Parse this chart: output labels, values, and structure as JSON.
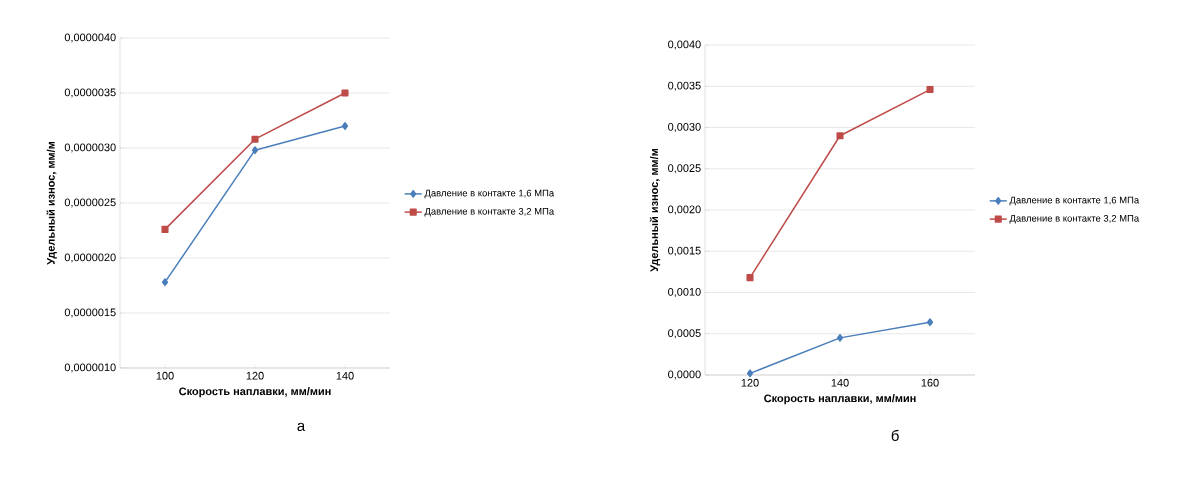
{
  "chart_data": [
    {
      "type": "line",
      "categories": [
        "100",
        "120",
        "140"
      ],
      "xlabel": "Скорость наплавки, мм/мин",
      "ylabel": "Удельный износ, мм/м",
      "series": [
        {
          "name": "Давление в контакте 1,6 МПа",
          "color": "#4a7ebb",
          "marker": "diamond",
          "values": [
            1.78e-06,
            2.98e-06,
            3.2e-06
          ]
        },
        {
          "name": "Давление в контакте 3,2 МПа",
          "color": "#be4b48",
          "marker": "square",
          "values": [
            2.26e-06,
            3.08e-06,
            3.5e-06
          ]
        }
      ],
      "ylim": [
        1e-06,
        4e-06
      ],
      "yticks": [
        {
          "value": 1e-06,
          "label": "0,0000010"
        },
        {
          "value": 1.5e-06,
          "label": "0,0000015"
        },
        {
          "value": 2e-06,
          "label": "0,0000020"
        },
        {
          "value": 2.5e-06,
          "label": "0,0000025"
        },
        {
          "value": 3e-06,
          "label": "0,0000030"
        },
        {
          "value": 3.5e-06,
          "label": "0,0000035"
        },
        {
          "value": 4e-06,
          "label": "0,0000040"
        }
      ],
      "grid": "y",
      "legend": "right",
      "annotations": [
        "а"
      ]
    },
    {
      "type": "line",
      "categories": [
        "120",
        "140",
        "160"
      ],
      "xlabel": "Скорость наплавки, мм/мин",
      "ylabel": "Удельный износ, мм/м",
      "series": [
        {
          "name": "Давление в контакте 1,6 МПа",
          "color": "#4a7ebb",
          "marker": "diamond",
          "values": [
            2e-05,
            0.00045,
            0.00064
          ]
        },
        {
          "name": "Давление в контакте 3,2 МПа",
          "color": "#be4b48",
          "marker": "square",
          "values": [
            0.00118,
            0.0029,
            0.00346
          ]
        }
      ],
      "ylim": [
        0,
        0.004
      ],
      "yticks": [
        {
          "value": 0,
          "label": "0,0000"
        },
        {
          "value": 0.0005,
          "label": "0,0005"
        },
        {
          "value": 0.001,
          "label": "0,0010"
        },
        {
          "value": 0.0015,
          "label": "0,0015"
        },
        {
          "value": 0.002,
          "label": "0,0020"
        },
        {
          "value": 0.0025,
          "label": "0,0025"
        },
        {
          "value": 0.003,
          "label": "0,0030"
        },
        {
          "value": 0.0035,
          "label": "0,0035"
        },
        {
          "value": 0.004,
          "label": "0,0040"
        }
      ],
      "grid": "y",
      "legend": "right",
      "annotations": [
        "б"
      ]
    }
  ]
}
